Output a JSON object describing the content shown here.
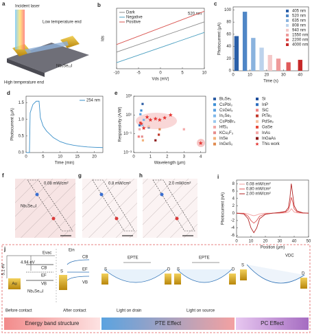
{
  "panels": {
    "a": {
      "label": "a",
      "incident": "Incident laser",
      "low": "Low temperature end",
      "material": "Nb₃Se₁₂I",
      "high": "High temperature end"
    },
    "f": {
      "label": "f",
      "power": "0.08 mW/cm²",
      "material": "Nb₃Se₁₂I"
    },
    "g": {
      "label": "g",
      "power": "0.8 mW/cm²"
    },
    "h": {
      "label": "h",
      "power": "2.0 mW/cm²"
    }
  },
  "chart_data": [
    {
      "type": "line",
      "label": "b",
      "xlabel": "Vds (mV)",
      "ylabel": "Ids",
      "annotation": "520 nm",
      "x": [
        -10,
        10
      ],
      "xlim": [
        -10,
        10
      ],
      "xticks": [
        -10,
        -5,
        0,
        5,
        10
      ],
      "ylim": [
        -100,
        100
      ],
      "legend": "upper left",
      "series": [
        {
          "name": "Dark",
          "color": "#8a8a8a",
          "values": [
            -45,
            55
          ]
        },
        {
          "name": "Negative",
          "color": "#4a9fc0",
          "values": [
            -80,
            20
          ]
        },
        {
          "name": "Positive",
          "color": "#d9534f",
          "values": [
            -20,
            90
          ]
        }
      ]
    },
    {
      "type": "bar",
      "label": "c",
      "xlabel": "Time (s)",
      "ylabel": "Photocurrent (μA)",
      "xlim": [
        0,
        45
      ],
      "xticks": [
        0,
        10,
        20,
        30,
        40
      ],
      "ylim": [
        0,
        105
      ],
      "yticks": [
        0,
        20,
        40,
        60,
        80,
        100
      ],
      "legend": "upper right",
      "series": [
        {
          "name": "405 nm",
          "color": "#2a5fa8",
          "x": [
            2
          ],
          "values": [
            57
          ]
        },
        {
          "name": "520 nm",
          "color": "#4f86c6",
          "x": [
            7
          ],
          "values": [
            97
          ]
        },
        {
          "name": "635 nm",
          "color": "#8ab3de",
          "x": [
            12
          ],
          "values": [
            54
          ]
        },
        {
          "name": "808 nm",
          "color": "#bcd3ec",
          "x": [
            17
          ],
          "values": [
            38
          ]
        },
        {
          "name": "940 nm",
          "color": "#f4c8c8",
          "x": [
            22
          ],
          "values": [
            26
          ]
        },
        {
          "name": "1550 nm",
          "color": "#ef9a9a",
          "x": [
            27
          ],
          "values": [
            20
          ]
        },
        {
          "name": "2200 nm",
          "color": "#e05a5a",
          "x": [
            33
          ],
          "values": [
            14
          ]
        },
        {
          "name": "4000 nm",
          "color": "#c62828",
          "x": [
            40
          ],
          "values": [
            18
          ]
        }
      ]
    },
    {
      "type": "line",
      "label": "d",
      "xlabel": "Time (min)",
      "ylabel": "Photocurrent (μA)",
      "x": [
        0,
        1,
        1.2,
        2,
        3,
        3.8,
        4.2,
        5,
        6,
        8,
        10,
        12,
        14,
        16,
        18,
        20,
        22.5
      ],
      "xlim": [
        0,
        22.5
      ],
      "xticks": [
        0,
        5,
        10,
        15,
        20
      ],
      "ylim": [
        0,
        1.7
      ],
      "yticks": [
        {
          "value": 0,
          "label": "0.0"
        },
        0.5,
        {
          "value": 1,
          "label": "1.0"
        },
        1.5
      ],
      "legend": "upper right",
      "series": [
        {
          "name": "254 nm",
          "color": "#3a8fc9",
          "values": [
            0,
            0,
            1.2,
            1.45,
            1.55,
            1.55,
            1.05,
            0.8,
            0.65,
            0.45,
            0.33,
            0.26,
            0.22,
            0.19,
            0.17,
            0.16,
            0.15
          ]
        }
      ]
    },
    {
      "type": "scatter",
      "label": "e",
      "xlabel": "Wavelength (μm)",
      "ylabel": "Responsivity (A/W)",
      "ylog": true,
      "xlim": [
        0,
        4.3
      ],
      "xticks": [
        0,
        1,
        2,
        3,
        4
      ],
      "ylim": [
        0.001,
        1000
      ],
      "yticks": [
        {
          "value": 0.001,
          "label": "10⁻³"
        },
        {
          "value": 0.1,
          "label": "10⁻¹"
        },
        {
          "value": 10,
          "label": "10¹"
        },
        {
          "value": 1000,
          "label": "10³"
        }
      ],
      "legend": "right",
      "series": [
        {
          "name": "Bi₂Se₃",
          "color": "#2f5fa5",
          "marker": "square",
          "x": [
            0.53
          ],
          "values": [
            150
          ]
        },
        {
          "name": "CsPbI₃",
          "color": "#3d8fd6",
          "marker": "square",
          "x": [
            0.45
          ],
          "values": [
            30
          ]
        },
        {
          "name": "CsGeI₃",
          "color": "#5aa0e0",
          "marker": "square",
          "x": [
            0.4
          ],
          "values": [
            12
          ]
        },
        {
          "name": "In₂Se₃",
          "color": "#7fb8ea",
          "marker": "square",
          "x": [
            0.6
          ],
          "values": [
            3
          ]
        },
        {
          "name": "CsPbBr₃",
          "color": "#9ac8ef",
          "marker": "square",
          "x": [
            0.52
          ],
          "values": [
            0.8
          ]
        },
        {
          "name": "HfS₃",
          "color": "#f1a7a7",
          "marker": "square",
          "x": [
            0.35
          ],
          "values": [
            0.3
          ]
        },
        {
          "name": "KCu₂F₃",
          "color": "#e68c8c",
          "marker": "square",
          "x": [
            0.5
          ],
          "values": [
            0.05
          ]
        },
        {
          "name": "InSe",
          "color": "#f3b27a",
          "marker": "square",
          "x": [
            0.55
          ],
          "values": [
            0.02
          ]
        },
        {
          "name": "InGeS₂",
          "color": "#e08a4e",
          "marker": "square",
          "x": [
            1.55
          ],
          "values": [
            0.3
          ]
        },
        {
          "name": "Si",
          "color": "#1f4e9c",
          "marker": "square",
          "x": [
            0.9
          ],
          "values": [
            0.5
          ]
        },
        {
          "name": "InP",
          "color": "#2d6fc0",
          "marker": "square",
          "x": [
            0.35
          ],
          "values": [
            0.8
          ]
        },
        {
          "name": "SiC",
          "color": "#f08080",
          "marker": "square",
          "x": [
            0.3
          ],
          "values": [
            0.05
          ]
        },
        {
          "name": "PtTe₂",
          "color": "#c0392b",
          "marker": "square",
          "x": [
            1.5
          ],
          "values": [
            0.08
          ]
        },
        {
          "name": "PdSe₂",
          "color": "#f6c1a0",
          "marker": "square",
          "x": [
            0.9
          ],
          "values": [
            0.6
          ]
        },
        {
          "name": "GaSe",
          "color": "#e74c3c",
          "marker": "square",
          "x": [
            0.4
          ],
          "values": [
            1.5
          ]
        },
        {
          "name": "InAs",
          "color": "#f4a6a6",
          "marker": "square",
          "x": [
            3.0
          ],
          "values": [
            0.3
          ]
        },
        {
          "name": "InGaAs",
          "color": "#8b1a1a",
          "marker": "square",
          "x": [
            1.3
          ],
          "values": [
            0.02
          ]
        },
        {
          "name": "This work",
          "color": "#e53935",
          "marker": "star",
          "x": [
            0.45,
            0.6,
            0.8,
            1.0,
            1.3,
            1.55,
            1.85,
            2.2,
            4.0
          ],
          "values": [
            1.2,
            0.4,
            6,
            3,
            4,
            3,
            5,
            10,
            0.01
          ]
        }
      ]
    },
    {
      "type": "line",
      "label": "i",
      "xlabel": "Position (μm)",
      "ylabel": "Photocurrent (nA)",
      "x": [
        0,
        5,
        8,
        10,
        12,
        14,
        16,
        20,
        25,
        30,
        34,
        36,
        37,
        38,
        39,
        40,
        42,
        46,
        50
      ],
      "xlim": [
        0,
        50
      ],
      "xticks": [
        0,
        10,
        20,
        30,
        40,
        50
      ],
      "ylim": [
        -6.5,
        9
      ],
      "yticks": [
        -6,
        -4,
        -2,
        0,
        2,
        4,
        6,
        8
      ],
      "legend": "upper left",
      "series": [
        {
          "name": "0.08 mW/cm²",
          "color": "#f29b9b",
          "values": [
            0,
            0,
            -0.2,
            -0.5,
            -0.7,
            -0.5,
            -0.2,
            0,
            0,
            0,
            0.1,
            0.3,
            0.6,
            1.2,
            0.8,
            0.3,
            0.1,
            0,
            0
          ]
        },
        {
          "name": "0.80 mW/cm²",
          "color": "#e05555",
          "values": [
            0,
            -0.1,
            -0.8,
            -2,
            -2.7,
            -2,
            -0.8,
            -0.2,
            0,
            0.1,
            0.3,
            0.9,
            2.2,
            4.3,
            3,
            1.2,
            0.3,
            0.05,
            0
          ]
        },
        {
          "name": "2.00 mW/cm²",
          "color": "#b22222",
          "values": [
            0,
            -0.2,
            -1.5,
            -4,
            -5.3,
            -4,
            -1.5,
            -0.3,
            0,
            0.2,
            0.5,
            1.5,
            4,
            8,
            5,
            2,
            0.6,
            0.1,
            0
          ]
        }
      ]
    }
  ],
  "diagram": {
    "label": "j",
    "au_level": "5.1 eV",
    "nb_level": "4.94 eV",
    "evac": "Evac",
    "cb": "CB",
    "ef": "EF",
    "vb": "VB",
    "au": "Au",
    "material": "Nb₃Se₁₂I",
    "before": "Before contact",
    "ein": "Ein",
    "after": "After contact",
    "source": "S",
    "drain": "D",
    "epte": "EPTE",
    "vdc": "VDC",
    "light_drain": "Light on drain",
    "light_source": "Light on source",
    "band": "Energy band structure",
    "pte": "PTE Effect",
    "pc": "PC Effect"
  }
}
